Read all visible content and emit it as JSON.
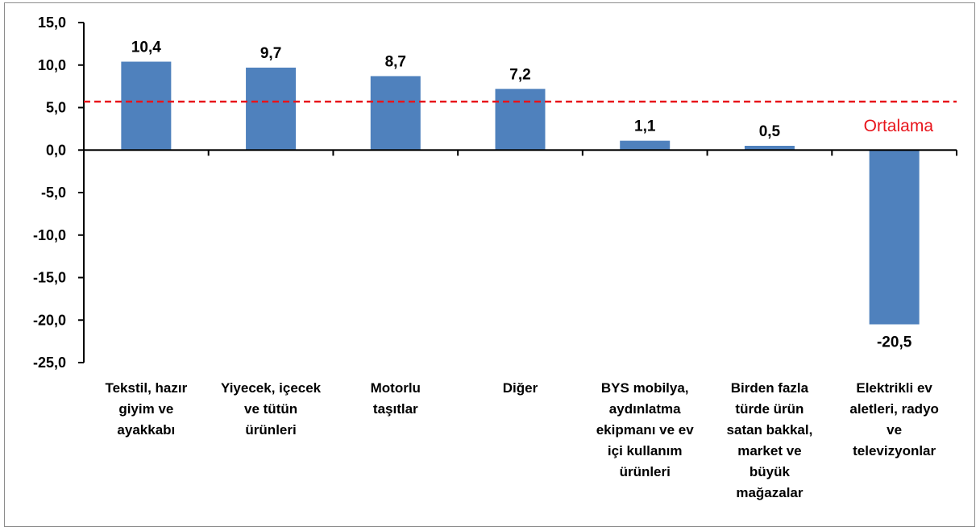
{
  "chart_data": {
    "type": "bar",
    "title": "",
    "xlabel": "",
    "ylabel": "",
    "ylim": [
      -25,
      15
    ],
    "y_ticks": [
      "15,0",
      "10,0",
      "5,0",
      "0,0",
      "-5,0",
      "-10,0",
      "-15,0",
      "-20,0",
      "-25,0"
    ],
    "y_tick_values": [
      15,
      10,
      5,
      0,
      -5,
      -10,
      -15,
      -20,
      -25
    ],
    "categories": [
      [
        "Tekstil, hazır",
        "giyim ve",
        "ayakkabı"
      ],
      [
        "Yiyecek, içecek",
        "ve tütün",
        "ürünleri"
      ],
      [
        "Motorlu",
        "taşıtlar"
      ],
      [
        "Diğer"
      ],
      [
        "BYS mobilya,",
        "aydınlatma",
        "ekipmanı ve ev",
        "içi kullanım",
        "ürünleri"
      ],
      [
        "Birden fazla",
        "türde ürün",
        "satan bakkal,",
        "market ve",
        "büyük",
        "mağazalar"
      ],
      [
        "Elektrikli ev",
        "aletleri, radyo",
        "ve",
        "televizyonlar"
      ]
    ],
    "values": [
      10.4,
      9.7,
      8.7,
      7.2,
      1.1,
      0.5,
      -20.5
    ],
    "value_labels": [
      "10,4",
      "9,7",
      "8,7",
      "7,2",
      "1,1",
      "0,5",
      "-20,5"
    ],
    "reference_line": {
      "label": "Ortalama",
      "value": 5.7,
      "style": "dashed",
      "color": "#e8141b"
    },
    "bar_color": "#4f81bd",
    "grid": false,
    "legend": "none"
  }
}
